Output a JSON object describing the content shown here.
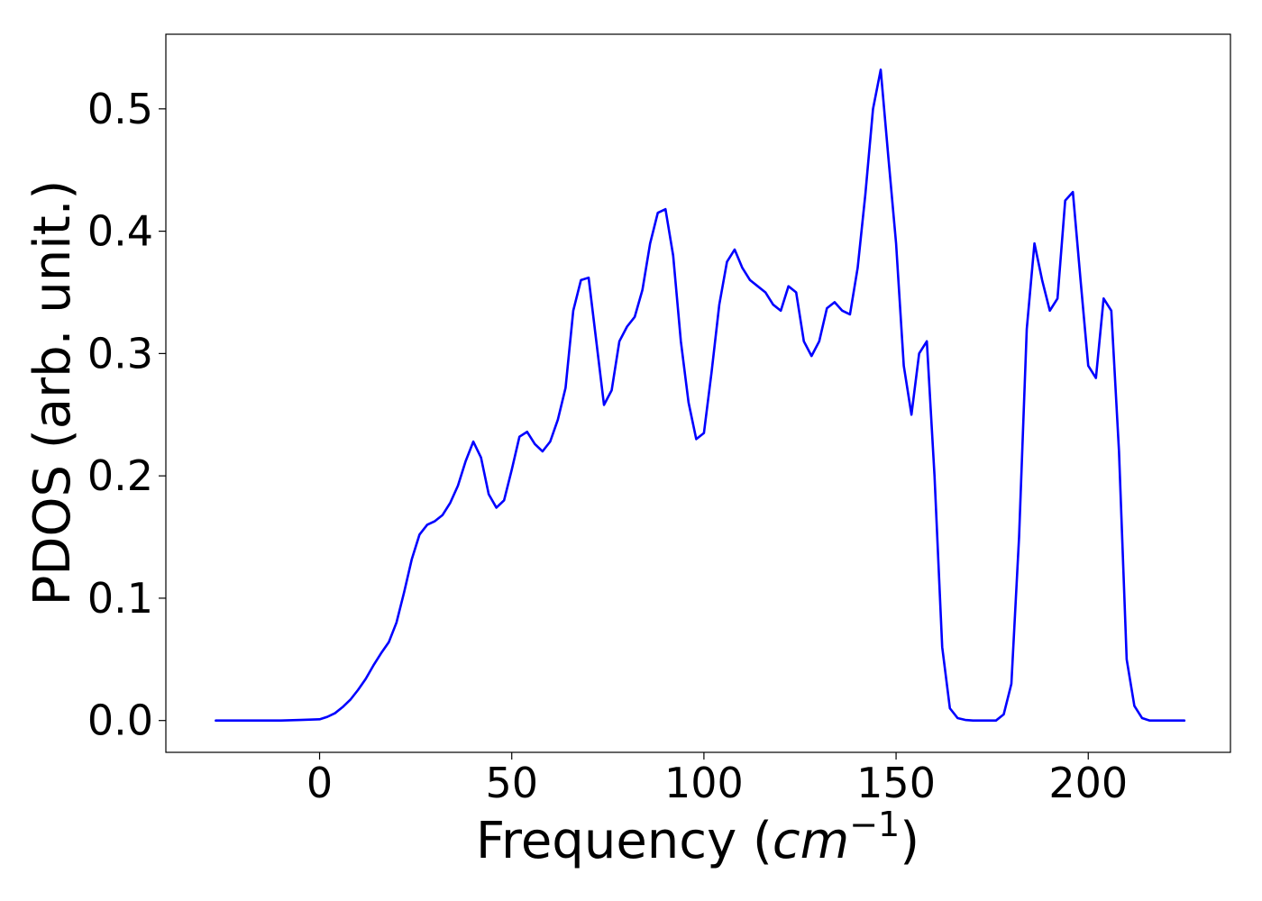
{
  "chart_data": {
    "type": "line",
    "xlabel": "Frequency (",
    "xlabel_math": "cm",
    "xlabel_sup": "−1",
    "xlabel_close": ")",
    "ylabel": "PDOS (arb. unit.)",
    "xlim": [
      -40,
      237
    ],
    "ylim": [
      -0.026,
      0.561
    ],
    "xticks": [
      {
        "value": 0,
        "label": "0"
      },
      {
        "value": 50,
        "label": "50"
      },
      {
        "value": 100,
        "label": "100"
      },
      {
        "value": 150,
        "label": "150"
      },
      {
        "value": 200,
        "label": "200"
      }
    ],
    "yticks": [
      {
        "value": 0.0,
        "label": "0.0"
      },
      {
        "value": 0.1,
        "label": "0.1"
      },
      {
        "value": 0.2,
        "label": "0.2"
      },
      {
        "value": 0.3,
        "label": "0.3"
      },
      {
        "value": 0.4,
        "label": "0.4"
      },
      {
        "value": 0.5,
        "label": "0.5"
      }
    ],
    "grid": false,
    "series": [
      {
        "color": "#0000ff",
        "x": [
          -27,
          -20,
          -10,
          -5,
          0,
          2,
          4,
          6,
          8,
          10,
          12,
          14,
          16,
          18,
          20,
          22,
          24,
          26,
          28,
          30,
          32,
          34,
          36,
          38,
          40,
          42,
          44,
          46,
          48,
          50,
          52,
          54,
          56,
          58,
          60,
          62,
          64,
          66,
          68,
          70,
          72,
          74,
          76,
          78,
          80,
          82,
          84,
          86,
          88,
          90,
          92,
          94,
          96,
          98,
          100,
          102,
          104,
          106,
          108,
          110,
          112,
          114,
          116,
          118,
          120,
          122,
          124,
          126,
          128,
          130,
          132,
          134,
          136,
          138,
          140,
          142,
          144,
          146,
          148,
          150,
          152,
          154,
          156,
          158,
          160,
          162,
          164,
          166,
          168,
          170,
          172,
          174,
          176,
          178,
          180,
          182,
          184,
          186,
          188,
          190,
          192,
          194,
          196,
          198,
          200,
          202,
          204,
          206,
          208,
          210,
          212,
          214,
          216,
          218,
          220,
          225
        ],
        "y": [
          0.0,
          0.0,
          0.0,
          0.0005,
          0.001,
          0.003,
          0.006,
          0.011,
          0.017,
          0.025,
          0.034,
          0.045,
          0.055,
          0.064,
          0.08,
          0.105,
          0.132,
          0.152,
          0.16,
          0.163,
          0.168,
          0.178,
          0.192,
          0.212,
          0.228,
          0.215,
          0.185,
          0.174,
          0.18,
          0.205,
          0.232,
          0.236,
          0.226,
          0.22,
          0.228,
          0.246,
          0.272,
          0.335,
          0.36,
          0.362,
          0.31,
          0.258,
          0.27,
          0.31,
          0.322,
          0.33,
          0.352,
          0.39,
          0.415,
          0.418,
          0.38,
          0.31,
          0.26,
          0.23,
          0.235,
          0.285,
          0.34,
          0.375,
          0.385,
          0.37,
          0.36,
          0.355,
          0.35,
          0.34,
          0.335,
          0.355,
          0.35,
          0.31,
          0.298,
          0.31,
          0.337,
          0.342,
          0.335,
          0.332,
          0.37,
          0.43,
          0.5,
          0.532,
          0.46,
          0.39,
          0.29,
          0.25,
          0.3,
          0.31,
          0.2,
          0.06,
          0.01,
          0.002,
          0.0005,
          0.0,
          0.0,
          0.0,
          0.0,
          0.005,
          0.03,
          0.15,
          0.32,
          0.39,
          0.36,
          0.335,
          0.345,
          0.425,
          0.432,
          0.36,
          0.29,
          0.28,
          0.345,
          0.335,
          0.22,
          0.05,
          0.012,
          0.002,
          0.0,
          0.0,
          0.0,
          0.0
        ]
      }
    ]
  }
}
